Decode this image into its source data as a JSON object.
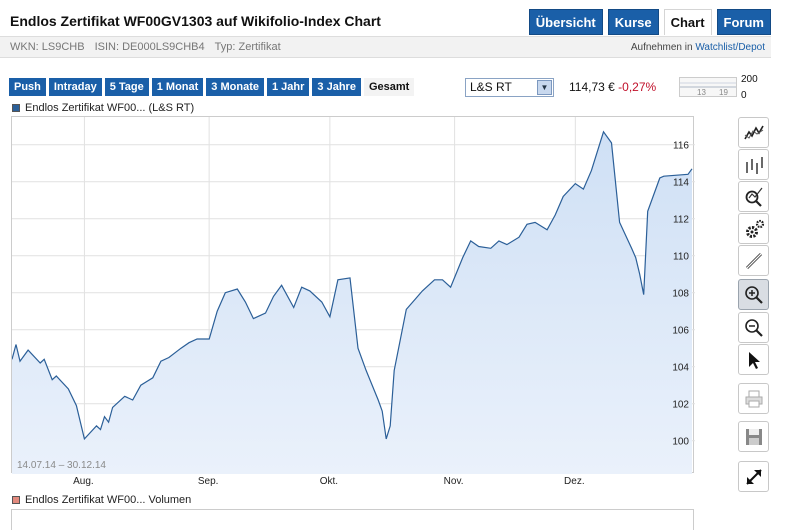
{
  "header": {
    "title": "Endlos Zertifikat WF00GV1303 auf Wikifolio-Index Chart",
    "nav": [
      "Übersicht",
      "Kurse",
      "Chart",
      "Forum"
    ],
    "active_nav": "Chart"
  },
  "info": {
    "wkn": "WKN: LS9CHB",
    "isin": "ISIN: DE000LS9CHB4",
    "typ": "Typ: Zertifikat",
    "watchlist_prefix": "Aufnehmen in",
    "watchlist_link": "Watchlist/Depot"
  },
  "ranges": [
    "Push",
    "Intraday",
    "5 Tage",
    "1 Monat",
    "3 Monate",
    "1 Jahr",
    "3 Jahre",
    "Gesamt"
  ],
  "active_range": "Gesamt",
  "exchange": {
    "selected": "L&S RT"
  },
  "quote": {
    "price": "114,73 €",
    "change": "-0,27%"
  },
  "mini_chart": {
    "labels": [
      "13",
      "19"
    ],
    "scale_top": "200",
    "scale_bottom": "0"
  },
  "legend": {
    "price": "Endlos Zertifikat WF00... (L&S RT)",
    "volume": "Endlos Zertifikat WF00... Volumen"
  },
  "colors": {
    "accent": "#1a5fa8",
    "line": "#2b5f98",
    "fill": "#dbe7f7",
    "negative": "#c0102a"
  },
  "toolbar": [
    "line-chart-icon",
    "ohlc-chart-icon",
    "indicator-icon",
    "settings-icon",
    "draw-tool-icon",
    "zoom-in-icon",
    "zoom-out-icon",
    "pointer-icon",
    "print-icon",
    "save-icon",
    "fullscreen-icon"
  ],
  "chart_data": {
    "type": "area",
    "date_range": "14.07.14 – 30.12.14",
    "x_ticks": [
      "Aug.",
      "Sep.",
      "Okt.",
      "Nov.",
      "Dez."
    ],
    "y_ticks": [
      "100",
      "102",
      "104",
      "106",
      "108",
      "110",
      "112",
      "114",
      "116"
    ],
    "ylim": [
      98.2,
      117.5
    ],
    "grid": true,
    "series": [
      {
        "name": "Endlos Zertifikat WF00... (L&S RT)",
        "x": [
          "2014-07-14",
          "2014-07-15",
          "2014-07-16",
          "2014-07-18",
          "2014-07-21",
          "2014-07-22",
          "2014-07-24",
          "2014-07-25",
          "2014-07-28",
          "2014-07-30",
          "2014-08-01",
          "2014-08-04",
          "2014-08-05",
          "2014-08-06",
          "2014-08-07",
          "2014-08-08",
          "2014-08-11",
          "2014-08-13",
          "2014-08-15",
          "2014-08-18",
          "2014-08-20",
          "2014-08-22",
          "2014-08-25",
          "2014-08-27",
          "2014-08-29",
          "2014-09-01",
          "2014-09-03",
          "2014-09-05",
          "2014-09-08",
          "2014-09-10",
          "2014-09-12",
          "2014-09-15",
          "2014-09-17",
          "2014-09-19",
          "2014-09-22",
          "2014-09-24",
          "2014-09-26",
          "2014-09-29",
          "2014-10-01",
          "2014-10-03",
          "2014-10-06",
          "2014-10-08",
          "2014-10-10",
          "2014-10-13",
          "2014-10-14",
          "2014-10-15",
          "2014-10-16",
          "2014-10-17",
          "2014-10-20",
          "2014-10-22",
          "2014-10-24",
          "2014-10-27",
          "2014-10-29",
          "2014-10-31",
          "2014-11-03",
          "2014-11-05",
          "2014-11-07",
          "2014-11-10",
          "2014-11-12",
          "2014-11-14",
          "2014-11-17",
          "2014-11-19",
          "2014-11-21",
          "2014-11-24",
          "2014-11-26",
          "2014-11-28",
          "2014-12-01",
          "2014-12-03",
          "2014-12-05",
          "2014-12-08",
          "2014-12-10",
          "2014-12-12",
          "2014-12-15",
          "2014-12-16",
          "2014-12-17",
          "2014-12-18",
          "2014-12-19",
          "2014-12-22",
          "2014-12-23",
          "2014-12-29",
          "2014-12-30"
        ],
        "values": [
          104.4,
          105.2,
          104.3,
          104.9,
          104.2,
          104.4,
          103.3,
          103.5,
          102.8,
          101.9,
          100.1,
          100.8,
          100.6,
          101.3,
          101.0,
          101.8,
          102.4,
          102.2,
          103.0,
          103.4,
          104.3,
          104.5,
          105.0,
          105.3,
          105.5,
          105.5,
          107.0,
          108.0,
          108.2,
          107.5,
          106.6,
          106.9,
          107.8,
          108.4,
          107.2,
          108.3,
          108.1,
          107.5,
          106.7,
          108.7,
          108.8,
          105.0,
          103.8,
          102.2,
          101.6,
          100.1,
          100.8,
          103.8,
          107.1,
          107.6,
          108.1,
          108.7,
          108.7,
          108.3,
          109.9,
          110.8,
          110.5,
          110.4,
          110.8,
          110.6,
          111.0,
          111.7,
          111.8,
          111.4,
          112.2,
          113.2,
          113.9,
          113.6,
          114.6,
          116.7,
          116.1,
          111.8,
          110.4,
          109.9,
          109.0,
          107.9,
          112.4,
          114.2,
          114.3,
          114.4,
          114.7
        ]
      }
    ]
  }
}
